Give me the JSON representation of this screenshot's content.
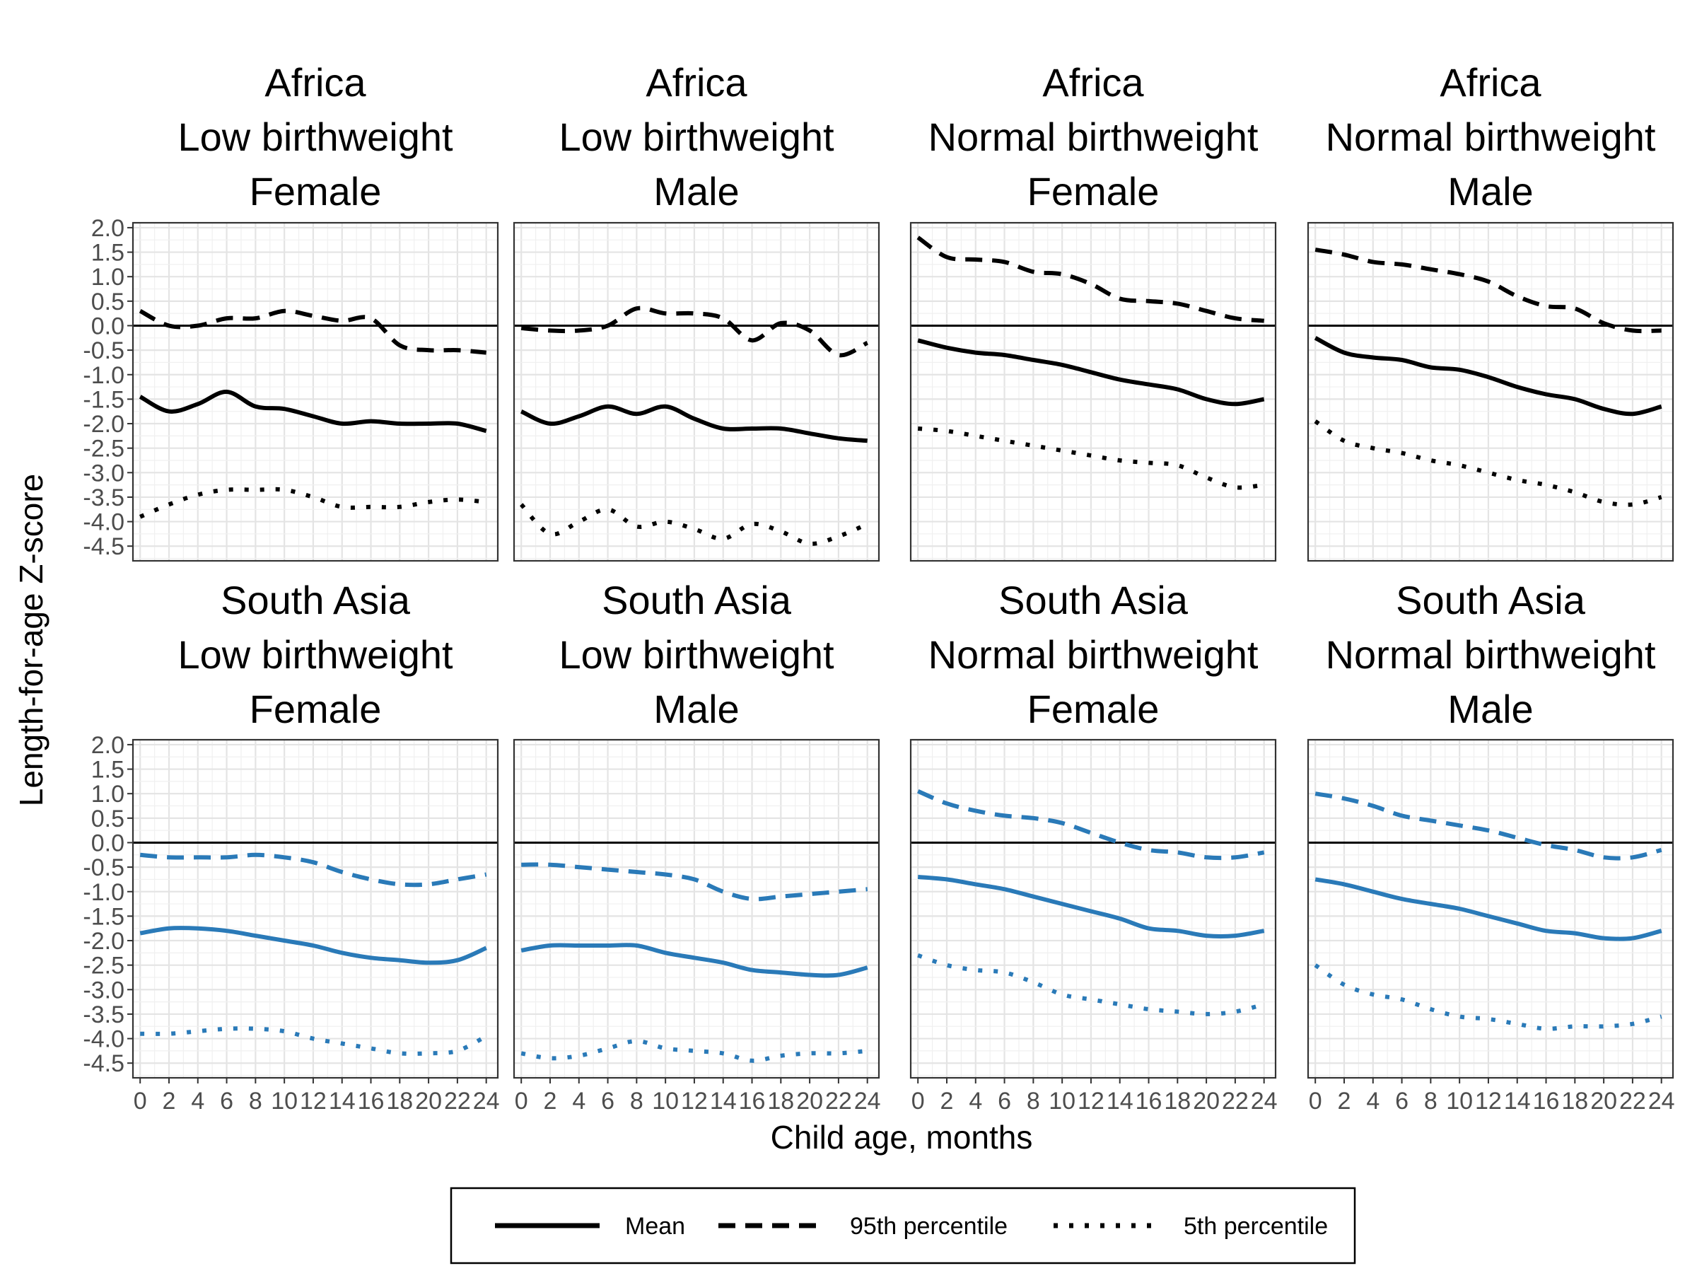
{
  "chart_data": {
    "type": "line",
    "xlabel": "Child age, months",
    "ylabel": "Length-for-age Z-score",
    "xlim": [
      -0.5,
      24.8
    ],
    "ylim": [
      -4.8,
      2.1
    ],
    "x_ticks": [
      0,
      2,
      4,
      6,
      8,
      10,
      12,
      14,
      16,
      18,
      20,
      22,
      24
    ],
    "y_ticks": [
      -4.5,
      -4.0,
      -3.5,
      -3.0,
      -2.5,
      -2.0,
      -1.5,
      -1.0,
      -0.5,
      0.0,
      0.5,
      1.0,
      1.5,
      2.0
    ],
    "y_tick_labels": [
      "-4.5",
      "-4.0",
      "-3.5",
      "-3.0",
      "-2.5",
      "-2.0",
      "-1.5",
      "-1.0",
      "-0.5",
      "0.0",
      "0.5",
      "1.0",
      "1.5",
      "2.0"
    ],
    "reference_line_y": 0,
    "grid": true,
    "legend": {
      "position": "bottom",
      "entries": [
        {
          "label": "Mean",
          "style": "solid"
        },
        {
          "label": "95th percentile",
          "style": "dashed"
        },
        {
          "label": "5th percentile",
          "style": "dotted"
        }
      ]
    },
    "colors": {
      "Africa": "#000000",
      "South Asia": "#2a7ab8"
    },
    "x": [
      0,
      2,
      4,
      6,
      8,
      10,
      12,
      14,
      16,
      18,
      20,
      22,
      24
    ],
    "panels": [
      {
        "title": [
          "Africa",
          "Low birthweight",
          "Female"
        ],
        "region": "Africa",
        "series": [
          {
            "name": "Mean",
            "values": [
              -1.45,
              -1.75,
              -1.6,
              -1.35,
              -1.65,
              -1.7,
              -1.85,
              -2.0,
              -1.95,
              -2.0,
              -2.0,
              -2.0,
              -2.15
            ]
          },
          {
            "name": "95th percentile",
            "values": [
              0.3,
              0.0,
              0.0,
              0.15,
              0.15,
              0.3,
              0.2,
              0.1,
              0.15,
              -0.4,
              -0.5,
              -0.5,
              -0.55
            ]
          },
          {
            "name": "5th percentile",
            "values": [
              -3.9,
              -3.65,
              -3.45,
              -3.35,
              -3.35,
              -3.35,
              -3.5,
              -3.7,
              -3.7,
              -3.7,
              -3.6,
              -3.55,
              -3.6
            ]
          }
        ]
      },
      {
        "title": [
          "Africa",
          "Low birthweight",
          "Male"
        ],
        "region": "Africa",
        "series": [
          {
            "name": "Mean",
            "values": [
              -1.75,
              -2.0,
              -1.85,
              -1.65,
              -1.8,
              -1.65,
              -1.9,
              -2.1,
              -2.1,
              -2.1,
              -2.2,
              -2.3,
              -2.35
            ]
          },
          {
            "name": "95th percentile",
            "values": [
              -0.05,
              -0.1,
              -0.1,
              0.0,
              0.35,
              0.25,
              0.25,
              0.15,
              -0.3,
              0.05,
              -0.1,
              -0.6,
              -0.35
            ]
          },
          {
            "name": "5th percentile",
            "values": [
              -3.65,
              -4.25,
              -4.0,
              -3.75,
              -4.1,
              -4.0,
              -4.15,
              -4.35,
              -4.05,
              -4.2,
              -4.45,
              -4.3,
              -4.05
            ]
          }
        ]
      },
      {
        "title": [
          "Africa",
          "Normal birthweight",
          "Female"
        ],
        "region": "Africa",
        "series": [
          {
            "name": "Mean",
            "values": [
              -0.3,
              -0.45,
              -0.55,
              -0.6,
              -0.7,
              -0.8,
              -0.95,
              -1.1,
              -1.2,
              -1.3,
              -1.5,
              -1.6,
              -1.5
            ]
          },
          {
            "name": "95th percentile",
            "values": [
              1.8,
              1.4,
              1.35,
              1.3,
              1.1,
              1.05,
              0.85,
              0.55,
              0.5,
              0.45,
              0.3,
              0.15,
              0.1
            ]
          },
          {
            "name": "5th percentile",
            "values": [
              -2.1,
              -2.15,
              -2.25,
              -2.35,
              -2.45,
              -2.55,
              -2.65,
              -2.75,
              -2.8,
              -2.85,
              -3.1,
              -3.3,
              -3.25
            ]
          }
        ]
      },
      {
        "title": [
          "Africa",
          "Normal birthweight",
          "Male"
        ],
        "region": "Africa",
        "series": [
          {
            "name": "Mean",
            "values": [
              -0.25,
              -0.55,
              -0.65,
              -0.7,
              -0.85,
              -0.9,
              -1.05,
              -1.25,
              -1.4,
              -1.5,
              -1.7,
              -1.8,
              -1.65
            ]
          },
          {
            "name": "95th percentile",
            "values": [
              1.55,
              1.45,
              1.3,
              1.25,
              1.15,
              1.05,
              0.9,
              0.6,
              0.4,
              0.35,
              0.05,
              -0.1,
              -0.1
            ]
          },
          {
            "name": "5th percentile",
            "values": [
              -1.95,
              -2.35,
              -2.5,
              -2.6,
              -2.75,
              -2.85,
              -3.0,
              -3.15,
              -3.25,
              -3.4,
              -3.6,
              -3.65,
              -3.5
            ]
          }
        ]
      },
      {
        "title": [
          "South Asia",
          "Low birthweight",
          "Female"
        ],
        "region": "South Asia",
        "series": [
          {
            "name": "Mean",
            "values": [
              -1.85,
              -1.75,
              -1.75,
              -1.8,
              -1.9,
              -2.0,
              -2.1,
              -2.25,
              -2.35,
              -2.4,
              -2.45,
              -2.4,
              -2.15
            ]
          },
          {
            "name": "95th percentile",
            "values": [
              -0.25,
              -0.3,
              -0.3,
              -0.3,
              -0.25,
              -0.3,
              -0.4,
              -0.6,
              -0.75,
              -0.85,
              -0.85,
              -0.75,
              -0.65
            ]
          },
          {
            "name": "5th percentile",
            "values": [
              -3.9,
              -3.9,
              -3.85,
              -3.8,
              -3.8,
              -3.85,
              -4.0,
              -4.1,
              -4.2,
              -4.3,
              -4.3,
              -4.25,
              -3.95
            ]
          }
        ]
      },
      {
        "title": [
          "South Asia",
          "Low birthweight",
          "Male"
        ],
        "region": "South Asia",
        "series": [
          {
            "name": "Mean",
            "values": [
              -2.2,
              -2.1,
              -2.1,
              -2.1,
              -2.1,
              -2.25,
              -2.35,
              -2.45,
              -2.6,
              -2.65,
              -2.7,
              -2.7,
              -2.55
            ]
          },
          {
            "name": "95th percentile",
            "values": [
              -0.45,
              -0.45,
              -0.5,
              -0.55,
              -0.6,
              -0.65,
              -0.75,
              -1.0,
              -1.15,
              -1.1,
              -1.05,
              -1.0,
              -0.95
            ]
          },
          {
            "name": "5th percentile",
            "values": [
              -4.3,
              -4.4,
              -4.35,
              -4.2,
              -4.05,
              -4.2,
              -4.25,
              -4.3,
              -4.45,
              -4.35,
              -4.3,
              -4.3,
              -4.25
            ]
          }
        ]
      },
      {
        "title": [
          "South Asia",
          "Normal birthweight",
          "Female"
        ],
        "region": "South Asia",
        "series": [
          {
            "name": "Mean",
            "values": [
              -0.7,
              -0.75,
              -0.85,
              -0.95,
              -1.1,
              -1.25,
              -1.4,
              -1.55,
              -1.75,
              -1.8,
              -1.9,
              -1.9,
              -1.8
            ]
          },
          {
            "name": "95th percentile",
            "values": [
              1.05,
              0.8,
              0.65,
              0.55,
              0.5,
              0.4,
              0.2,
              0.0,
              -0.15,
              -0.2,
              -0.3,
              -0.3,
              -0.2
            ]
          },
          {
            "name": "5th percentile",
            "values": [
              -2.3,
              -2.5,
              -2.6,
              -2.65,
              -2.85,
              -3.1,
              -3.2,
              -3.3,
              -3.4,
              -3.45,
              -3.5,
              -3.45,
              -3.3
            ]
          }
        ]
      },
      {
        "title": [
          "South Asia",
          "Normal birthweight",
          "Male"
        ],
        "region": "South Asia",
        "series": [
          {
            "name": "Mean",
            "values": [
              -0.75,
              -0.85,
              -1.0,
              -1.15,
              -1.25,
              -1.35,
              -1.5,
              -1.65,
              -1.8,
              -1.85,
              -1.95,
              -1.95,
              -1.8
            ]
          },
          {
            "name": "95th percentile",
            "values": [
              1.0,
              0.9,
              0.75,
              0.55,
              0.45,
              0.35,
              0.25,
              0.1,
              -0.05,
              -0.15,
              -0.3,
              -0.3,
              -0.15
            ]
          },
          {
            "name": "5th percentile",
            "values": [
              -2.5,
              -2.9,
              -3.1,
              -3.2,
              -3.4,
              -3.55,
              -3.6,
              -3.7,
              -3.8,
              -3.75,
              -3.75,
              -3.7,
              -3.55
            ]
          }
        ]
      }
    ]
  }
}
